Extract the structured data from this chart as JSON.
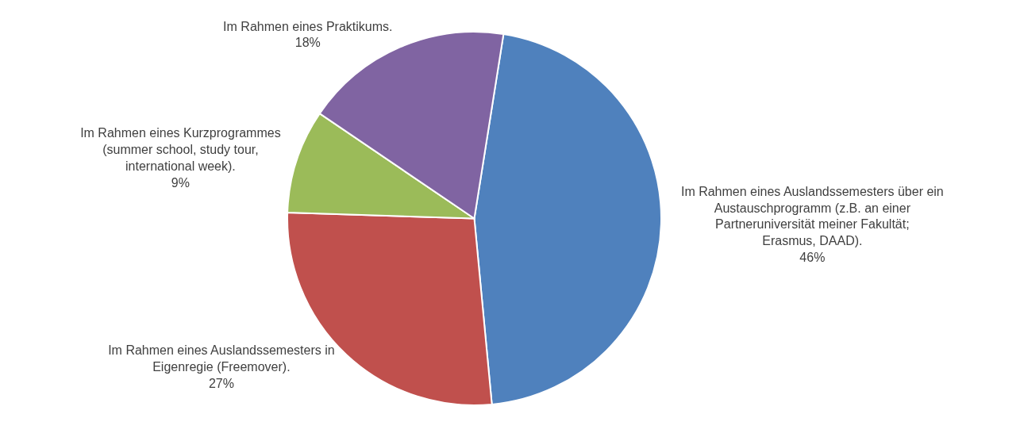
{
  "chart_data": {
    "type": "pie",
    "categories": [
      "Im Rahmen eines Auslandssemesters über ein Austauschprogramm (z.B. an einer Partneruniversität meiner Fakultät; Erasmus, DAAD).",
      "Im Rahmen eines Auslandssemesters in Eigenregie (Freemover).",
      "Im Rahmen eines Kurzprogrammes (summer school, study tour, international week).",
      "Im Rahmen eines Praktikums."
    ],
    "values": [
      46,
      27,
      9,
      18
    ],
    "value_labels": [
      "46%",
      "27%",
      "9%",
      "18%"
    ],
    "colors": [
      "#4f81bd",
      "#c0504d",
      "#9bbb59",
      "#8064a2"
    ],
    "legend": false
  }
}
